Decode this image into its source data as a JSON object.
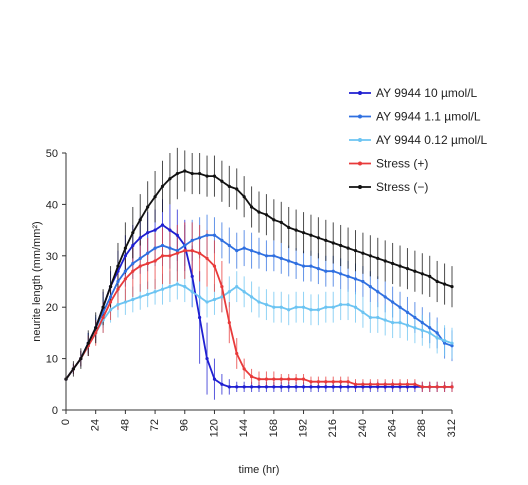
{
  "chart_data": {
    "type": "line",
    "xlabel": "time (hr)",
    "ylabel": "neurite length (mm/mm²)",
    "xlim": [
      0,
      312
    ],
    "ylim": [
      0,
      50
    ],
    "xticks": [
      0,
      24,
      48,
      72,
      96,
      120,
      144,
      168,
      192,
      216,
      240,
      264,
      288,
      312
    ],
    "yticks": [
      0,
      10,
      20,
      30,
      40,
      50
    ],
    "grid": false,
    "legend_position": "top-right",
    "error_bars": true,
    "series": [
      {
        "name": "AY 9944 10  µmol/L",
        "color": "#1f1fd1",
        "x": [
          0,
          6,
          12,
          18,
          24,
          30,
          36,
          42,
          48,
          54,
          60,
          66,
          72,
          78,
          84,
          90,
          96,
          102,
          108,
          114,
          120,
          126,
          132,
          138,
          144,
          150,
          156,
          162,
          168,
          174,
          180,
          186,
          192,
          198,
          204,
          210,
          216,
          222,
          228,
          234,
          240,
          246,
          252,
          258,
          264,
          270,
          276,
          282,
          288,
          294,
          300,
          306,
          312
        ],
        "y": [
          6,
          8,
          10,
          13,
          16,
          20,
          24,
          27,
          30,
          32,
          33.5,
          34.5,
          35,
          36,
          35,
          34,
          32,
          26,
          18,
          10,
          6,
          5,
          4.5,
          4.5,
          4.5,
          4.5,
          4.5,
          4.5,
          4.5,
          4.5,
          4.5,
          4.5,
          4.5,
          4.5,
          4.5,
          4.5,
          4.5,
          4.5,
          4.5,
          4.5,
          4.5,
          4.5,
          4.5,
          4.5,
          4.5,
          4.5,
          4.5,
          4.5,
          4.5,
          4.5,
          4.5,
          4.5,
          4.5
        ],
        "err": [
          1,
          1,
          1.5,
          2,
          2,
          3,
          3,
          4,
          4,
          4,
          4,
          4,
          4,
          5,
          5,
          5,
          5,
          6,
          9,
          7,
          4,
          2,
          1.5,
          1,
          1,
          1,
          1,
          1,
          1,
          1,
          1,
          1,
          1,
          1,
          1,
          1,
          1,
          1,
          1,
          1,
          1,
          1,
          1,
          1,
          1,
          1,
          1,
          1,
          1,
          1,
          1,
          1,
          1
        ]
      },
      {
        "name": "AY 9944 1.1 µmol/L",
        "color": "#2f6fe0",
        "x": [
          0,
          6,
          12,
          18,
          24,
          30,
          36,
          42,
          48,
          54,
          60,
          66,
          72,
          78,
          84,
          90,
          96,
          102,
          108,
          114,
          120,
          126,
          132,
          138,
          144,
          150,
          156,
          162,
          168,
          174,
          180,
          186,
          192,
          198,
          204,
          210,
          216,
          222,
          228,
          234,
          240,
          246,
          252,
          258,
          264,
          270,
          276,
          282,
          288,
          294,
          300,
          306,
          312
        ],
        "y": [
          6,
          8,
          10,
          13,
          16,
          19,
          22,
          25,
          27,
          28.5,
          29.5,
          30.5,
          31.5,
          32,
          31.5,
          31,
          32,
          33,
          33.5,
          34,
          34,
          33,
          32,
          31,
          31.5,
          31,
          30.5,
          30,
          30,
          29.5,
          29,
          28.5,
          28,
          28,
          27.5,
          27,
          27,
          26.5,
          26,
          25.5,
          25,
          24,
          23,
          22,
          21,
          20,
          19,
          18,
          17,
          16,
          15,
          13,
          12.5
        ],
        "err": [
          1,
          1,
          1.5,
          2,
          2.5,
          3,
          3,
          3,
          3,
          3,
          3,
          3.5,
          3.5,
          4,
          4,
          4,
          4,
          4,
          4,
          4,
          3.5,
          3.5,
          3.5,
          3.5,
          3.5,
          3.5,
          3,
          3,
          3,
          3,
          3,
          3,
          3,
          3,
          3,
          3,
          3,
          3,
          3,
          3,
          3,
          3,
          3,
          3,
          3,
          3,
          3,
          3,
          3,
          3,
          3,
          3,
          3
        ]
      },
      {
        "name": "AY 9944 0.12 µmol/L",
        "color": "#6cc4f2",
        "x": [
          0,
          6,
          12,
          18,
          24,
          30,
          36,
          42,
          48,
          54,
          60,
          66,
          72,
          78,
          84,
          90,
          96,
          102,
          108,
          114,
          120,
          126,
          132,
          138,
          144,
          150,
          156,
          162,
          168,
          174,
          180,
          186,
          192,
          198,
          204,
          210,
          216,
          222,
          228,
          234,
          240,
          246,
          252,
          258,
          264,
          270,
          276,
          282,
          288,
          294,
          300,
          306,
          312
        ],
        "y": [
          6,
          8,
          10,
          12.5,
          15,
          17.5,
          19.5,
          20.5,
          21,
          21.5,
          22,
          22.5,
          23,
          23.5,
          24,
          24.5,
          24,
          23,
          22,
          21,
          21.5,
          22,
          23,
          24,
          23,
          22,
          21,
          20.5,
          20,
          20,
          19.5,
          20,
          20,
          19.5,
          19.5,
          20,
          20,
          20.5,
          20.5,
          20,
          19,
          18,
          18,
          17.5,
          17,
          17,
          16.5,
          16,
          15.5,
          15,
          14,
          13.5,
          13
        ],
        "err": [
          1,
          1,
          1.5,
          2,
          2,
          2.5,
          2.5,
          2.5,
          2.5,
          2.5,
          2.5,
          2.5,
          2.5,
          3,
          3,
          3,
          3,
          3,
          3,
          3,
          3,
          3,
          3,
          3,
          3,
          3,
          3,
          3,
          3,
          3,
          3,
          3,
          3,
          3,
          3,
          3,
          3,
          3,
          3,
          3,
          3,
          3,
          3,
          3,
          3,
          3,
          3,
          3,
          3,
          3,
          3,
          3,
          3
        ]
      },
      {
        "name": "Stress (+)",
        "color": "#e83a3a",
        "x": [
          0,
          6,
          12,
          18,
          24,
          30,
          36,
          42,
          48,
          54,
          60,
          66,
          72,
          78,
          84,
          90,
          96,
          102,
          108,
          114,
          120,
          126,
          132,
          138,
          144,
          150,
          156,
          162,
          168,
          174,
          180,
          186,
          192,
          198,
          204,
          210,
          216,
          222,
          228,
          234,
          240,
          246,
          252,
          258,
          264,
          270,
          276,
          282,
          288,
          294,
          300,
          306,
          312
        ],
        "y": [
          6,
          8,
          10,
          12.5,
          15,
          18,
          21,
          23.5,
          25.5,
          27,
          28,
          28.5,
          29,
          30,
          30,
          30.5,
          31,
          31,
          30.5,
          29.5,
          28,
          24,
          17,
          11,
          8,
          6.5,
          6,
          6,
          6,
          6,
          6,
          6,
          6,
          5.5,
          5.5,
          5.5,
          5.5,
          5.5,
          5.5,
          5,
          5,
          5,
          5,
          5,
          5,
          5,
          5,
          5,
          4.5,
          4.5,
          4.5,
          4.5,
          4.5
        ],
        "err": [
          1,
          1,
          1.5,
          2,
          2.5,
          3,
          3.5,
          4,
          4.5,
          5,
          5,
          5,
          5.5,
          5.5,
          5.5,
          5.5,
          5.5,
          5.5,
          5.5,
          5.5,
          5,
          5,
          4,
          3,
          2,
          1.5,
          1.5,
          1.5,
          1.5,
          1,
          1,
          1,
          1,
          1,
          1,
          1,
          1,
          1,
          1,
          1,
          1,
          1,
          1,
          1,
          1,
          1,
          1,
          1,
          1,
          1,
          1,
          1,
          1
        ]
      },
      {
        "name": "Stress (−)",
        "color": "#111111",
        "x": [
          0,
          6,
          12,
          18,
          24,
          30,
          36,
          42,
          48,
          54,
          60,
          66,
          72,
          78,
          84,
          90,
          96,
          102,
          108,
          114,
          120,
          126,
          132,
          138,
          144,
          150,
          156,
          162,
          168,
          174,
          180,
          186,
          192,
          198,
          204,
          210,
          216,
          222,
          228,
          234,
          240,
          246,
          252,
          258,
          264,
          270,
          276,
          282,
          288,
          294,
          300,
          306,
          312
        ],
        "y": [
          6,
          8,
          10,
          13,
          16,
          20,
          24,
          28,
          31.5,
          34.5,
          37,
          39.5,
          41.5,
          43.5,
          45,
          46,
          46.5,
          46,
          46,
          45.5,
          45.5,
          44.5,
          43.5,
          43,
          41.5,
          39.5,
          38.5,
          38,
          37,
          36.5,
          35.5,
          35,
          34.5,
          34,
          33.5,
          33,
          32.5,
          32,
          31.5,
          31,
          30.5,
          30,
          29.5,
          29,
          28.5,
          28,
          27.5,
          27,
          26.5,
          26,
          25,
          24.5,
          24
        ],
        "err": [
          1,
          1.5,
          2,
          2.5,
          3,
          3.5,
          4,
          4.5,
          5,
          5,
          5,
          5,
          5,
          5,
          5,
          5,
          4,
          4,
          4,
          4,
          4,
          4,
          4,
          4,
          4,
          4,
          4,
          4,
          4,
          4,
          4,
          4,
          4,
          4,
          4,
          4,
          4,
          4,
          4,
          4,
          4,
          4,
          4,
          4,
          4,
          4,
          4,
          4,
          4,
          4,
          4,
          4,
          4
        ]
      }
    ]
  }
}
